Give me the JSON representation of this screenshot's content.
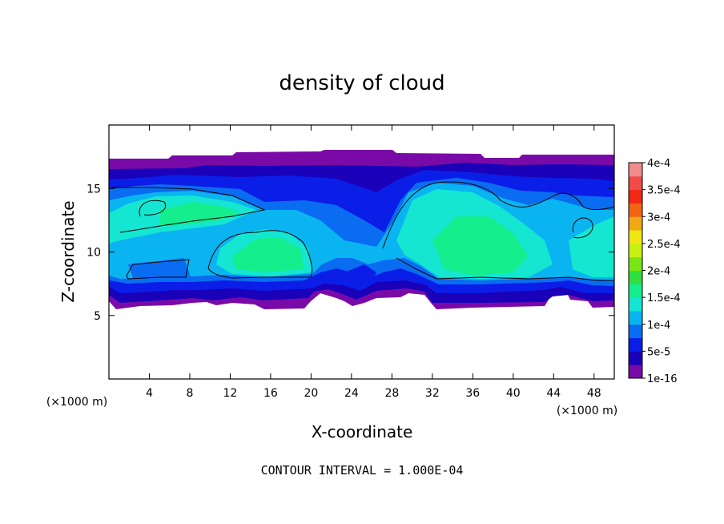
{
  "chart_data": {
    "type": "heatmap",
    "title": "density of cloud",
    "xlabel": "X-coordinate",
    "ylabel": "Z-coordinate",
    "x_unit": "(×1000 m)",
    "z_unit": "(×1000 m)",
    "xlim": [
      0,
      50
    ],
    "ylim": [
      0,
      20
    ],
    "x_ticks": [
      4,
      8,
      12,
      16,
      20,
      24,
      28,
      32,
      36,
      40,
      44,
      48
    ],
    "y_ticks": [
      5,
      10,
      15
    ],
    "footer": "CONTOUR INTERVAL = 1.000E-04",
    "colorbar": {
      "labels": [
        "1e-16",
        "5e-5",
        "1e-4",
        "1.5e-4",
        "2e-4",
        "2.5e-4",
        "3e-4",
        "3.5e-4",
        "4e-4"
      ],
      "colors": [
        "#7a0aa8",
        "#1a00b8",
        "#0a1ee8",
        "#0a6cf0",
        "#0ab4f0",
        "#14e6d2",
        "#14ee8c",
        "#30e040",
        "#78e614",
        "#c8f014",
        "#f0e614",
        "#f0a814",
        "#f06414",
        "#f02814",
        "#f04a4a",
        "#f08c8c"
      ]
    },
    "cloud_base_km": 6,
    "cloud_top_km": 17.5,
    "contour_levels": [
      0.0001
    ]
  }
}
